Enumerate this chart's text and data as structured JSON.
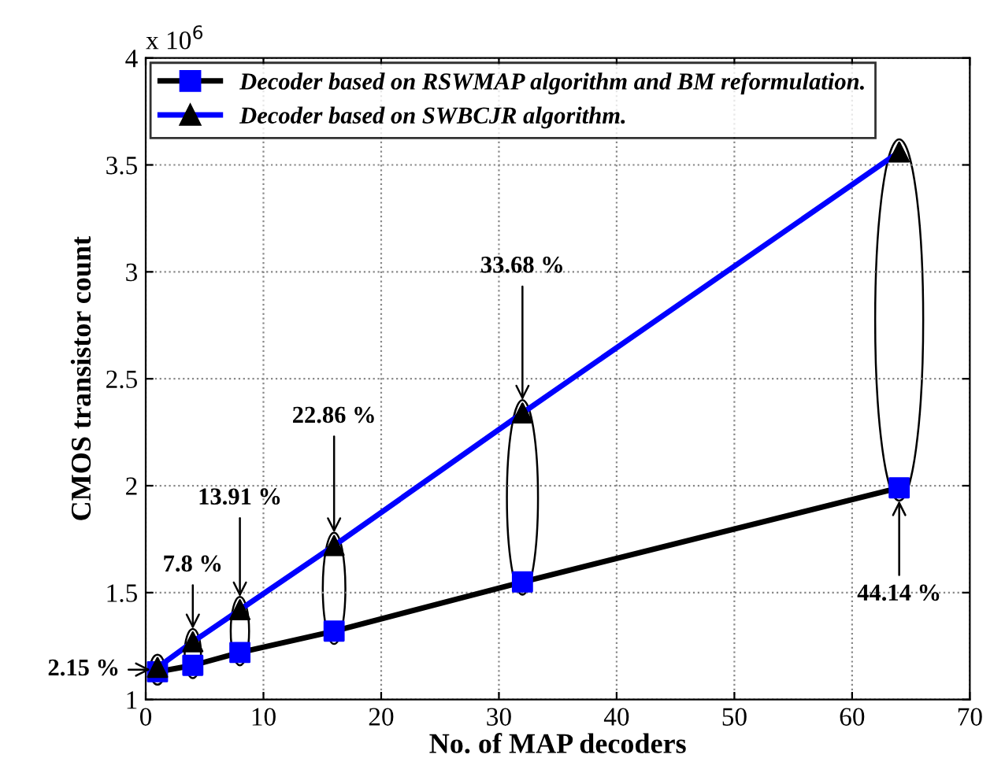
{
  "chart_data": {
    "type": "line",
    "xlabel": "No. of MAP decoders",
    "ylabel": "CMOS transistor count",
    "x": [
      1,
      4,
      8,
      16,
      32,
      64
    ],
    "series": [
      {
        "name": "Decoder based on RSWMAP algorithm and BM reformulation.",
        "color": "#000000",
        "colors": [
          "#0000ff",
          "#0000ff",
          "#0000ff",
          "#0000ff",
          "#0000ff",
          "#0000ff"
        ],
        "marker": "square",
        "values": [
          1.13,
          1.16,
          1.22,
          1.32,
          1.55,
          1.99
        ]
      },
      {
        "name": "Decoder based on SWBCJR algorithm.",
        "color": "#0000ff",
        "colors": [
          "#000000",
          "#000000",
          "#000000",
          "#000000",
          "#000000",
          "#000000"
        ],
        "marker": "triangle",
        "values": [
          1.15,
          1.27,
          1.42,
          1.72,
          2.34,
          3.56
        ]
      }
    ],
    "xlim": [
      0,
      70
    ],
    "xticks": [
      0,
      10,
      20,
      30,
      40,
      50,
      60,
      70
    ],
    "ylim": [
      1,
      4
    ],
    "yticks": [
      1,
      1.5,
      2,
      2.5,
      3,
      3.5,
      4
    ],
    "grid": true,
    "legend": "top left",
    "line_style": "solid",
    "annotations": [
      "x 10$^{6}$",
      {
        "text": "2.15 %",
        "x": 0.4,
        "y": 1.14
      },
      {
        "text": "7.8 %",
        "x": 4,
        "y": 1.33
      },
      {
        "text": "13.91 %",
        "x": 8,
        "y": 1.48
      },
      {
        "text": "22.86 %",
        "x": 16,
        "y": 1.78
      },
      {
        "text": "33.68 %",
        "x": 32,
        "y": 2.4
      },
      {
        "text": "44.14 %",
        "x": 64,
        "y": 1.93
      }
    ]
  }
}
